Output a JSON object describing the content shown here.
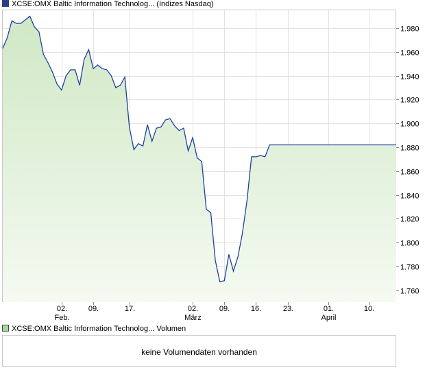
{
  "legend": {
    "price_label": "XCSE:OMX Baltic Information Technolog... (Indizes Nasdaq)",
    "price_color": "#1f3fa0",
    "volume_label": "XCSE:OMX Baltic Information Technolog... Volumen",
    "volume_color": "#a6d79a"
  },
  "volume_panel": {
    "message": "keine Volumendaten vorhanden"
  },
  "chart_data": {
    "type": "area",
    "ylim": [
      1.75,
      1.995
    ],
    "y_ticks": [
      1.76,
      1.78,
      1.8,
      1.82,
      1.84,
      1.86,
      1.88,
      1.9,
      1.92,
      1.94,
      1.96,
      1.98
    ],
    "y_tick_labels": [
      "1.760",
      "1.780",
      "1.800",
      "1.820",
      "1.840",
      "1.860",
      "1.880",
      "1.900",
      "1.920",
      "1.940",
      "1.960",
      "1.980"
    ],
    "x_ticks": [
      "2024-02-02",
      "2024-02-09",
      "2024-02-17",
      "2024-03-02",
      "2024-03-09",
      "2024-03-16",
      "2024-03-23",
      "2024-04-01",
      "2024-04-10"
    ],
    "x_tick_labels": [
      "02.",
      "09.",
      "17.",
      "02.",
      "09.",
      "16.",
      "23.",
      "01.",
      "10."
    ],
    "month_labels": [
      {
        "x": "2024-02-02",
        "label": "Feb."
      },
      {
        "x": "2024-03-02",
        "label": "März"
      },
      {
        "x": "2024-04-01",
        "label": "April"
      }
    ],
    "xlim": [
      "2024-01-20",
      "2024-04-16"
    ],
    "line_color": "#1f3fa0",
    "fill_top_color": "#cfe8c4",
    "fill_bottom_color": "#f5faf2",
    "grid": true,
    "series": [
      {
        "x": [
          "2024-01-20",
          "2024-01-21",
          "2024-01-22",
          "2024-01-23",
          "2024-01-24",
          "2024-01-25",
          "2024-01-26",
          "2024-01-27",
          "2024-01-28",
          "2024-01-29",
          "2024-01-30",
          "2024-01-31",
          "2024-02-01",
          "2024-02-02",
          "2024-02-03",
          "2024-02-04",
          "2024-02-05",
          "2024-02-06",
          "2024-02-07",
          "2024-02-08",
          "2024-02-09",
          "2024-02-10",
          "2024-02-11",
          "2024-02-12",
          "2024-02-13",
          "2024-02-14",
          "2024-02-15",
          "2024-02-16",
          "2024-02-17",
          "2024-02-18",
          "2024-02-19",
          "2024-02-20",
          "2024-02-21",
          "2024-02-22",
          "2024-02-23",
          "2024-02-24",
          "2024-02-25",
          "2024-02-26",
          "2024-02-27",
          "2024-02-28",
          "2024-02-29",
          "2024-03-01",
          "2024-03-02",
          "2024-03-03",
          "2024-03-04",
          "2024-03-05",
          "2024-03-06",
          "2024-03-07",
          "2024-03-08",
          "2024-03-09",
          "2024-03-10",
          "2024-03-11",
          "2024-03-12",
          "2024-03-13",
          "2024-03-14",
          "2024-03-15",
          "2024-03-16",
          "2024-03-17",
          "2024-03-18",
          "2024-03-19",
          "2024-03-20",
          "2024-03-21",
          "2024-03-22",
          "2024-03-23",
          "2024-03-24",
          "2024-03-25",
          "2024-03-26",
          "2024-03-27",
          "2024-03-28",
          "2024-03-29",
          "2024-03-30",
          "2024-03-31",
          "2024-04-01",
          "2024-04-02",
          "2024-04-03",
          "2024-04-04",
          "2024-04-05",
          "2024-04-06",
          "2024-04-07",
          "2024-04-08",
          "2024-04-09",
          "2024-04-10",
          "2024-04-11",
          "2024-04-12",
          "2024-04-13",
          "2024-04-14",
          "2024-04-15",
          "2024-04-16"
        ],
        "values": [
          1.963,
          1.972,
          1.986,
          1.984,
          1.984,
          1.987,
          1.99,
          1.981,
          1.977,
          1.958,
          1.951,
          1.943,
          1.933,
          1.928,
          1.94,
          1.945,
          1.945,
          1.932,
          1.954,
          1.962,
          1.946,
          1.949,
          1.946,
          1.945,
          1.94,
          1.93,
          1.932,
          1.939,
          1.897,
          1.878,
          1.883,
          1.881,
          1.899,
          1.885,
          1.896,
          1.897,
          1.903,
          1.904,
          1.898,
          1.894,
          1.896,
          1.877,
          1.888,
          1.871,
          1.868,
          1.828,
          1.825,
          1.785,
          1.767,
          1.768,
          1.79,
          1.776,
          1.788,
          1.808,
          1.835,
          1.872,
          1.872,
          1.873,
          1.872,
          1.882,
          1.882,
          1.882,
          1.882,
          1.882,
          1.882,
          1.882,
          1.882,
          1.882,
          1.882,
          1.882,
          1.882,
          1.882,
          1.882,
          1.882,
          1.882,
          1.882,
          1.882,
          1.882,
          1.882,
          1.882,
          1.882,
          1.882,
          1.882,
          1.882,
          1.882,
          1.882,
          1.882,
          1.882
        ]
      }
    ]
  }
}
